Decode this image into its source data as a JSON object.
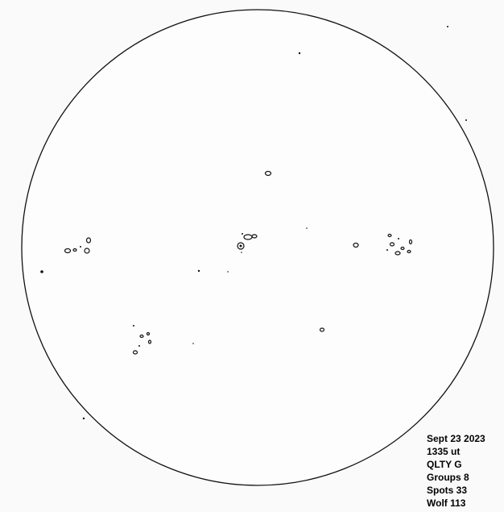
{
  "notes": {
    "lines": [
      "Sept 23 2023",
      "1335 ut",
      "QLTY G",
      "Groups 8",
      "Spots 33",
      "Wolf 113"
    ]
  }
}
